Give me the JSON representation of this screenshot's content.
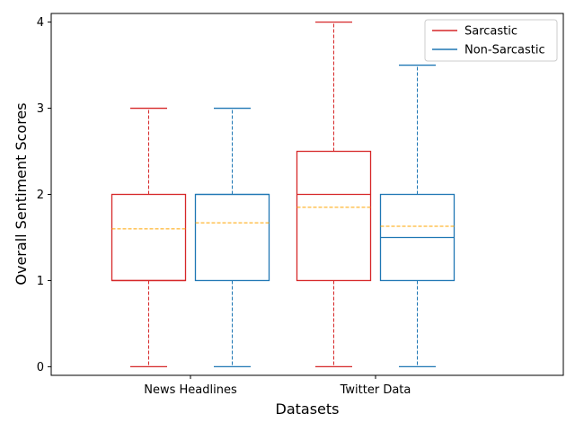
{
  "chart_data": {
    "type": "box",
    "xlabel": "Datasets",
    "ylabel": "Overall Sentiment Scores",
    "categories": [
      "News Headlines",
      "Twitter Data"
    ],
    "ylim": [
      -0.1,
      4.1
    ],
    "yticks": [
      "0",
      "1",
      "2",
      "3",
      "4"
    ],
    "legend_position": "top-right",
    "series": [
      {
        "name": "Sarcastic",
        "color": "#d62728",
        "boxes": [
          {
            "whislo": 0,
            "q1": 1,
            "median": 1,
            "mean": 1.6,
            "q3": 2,
            "whishi": 3
          },
          {
            "whislo": 0,
            "q1": 1,
            "median": 2,
            "mean": 1.85,
            "q3": 2.5,
            "whishi": 4
          }
        ]
      },
      {
        "name": "Non-Sarcastic",
        "color": "#1f77b4",
        "boxes": [
          {
            "whislo": 0,
            "q1": 1,
            "median": 2,
            "mean": 1.67,
            "q3": 2,
            "whishi": 3
          },
          {
            "whislo": 0,
            "q1": 1,
            "median": 1.5,
            "mean": 1.63,
            "q3": 2,
            "whishi": 3.5
          }
        ]
      }
    ],
    "mean_line_color": "#ffa500"
  }
}
